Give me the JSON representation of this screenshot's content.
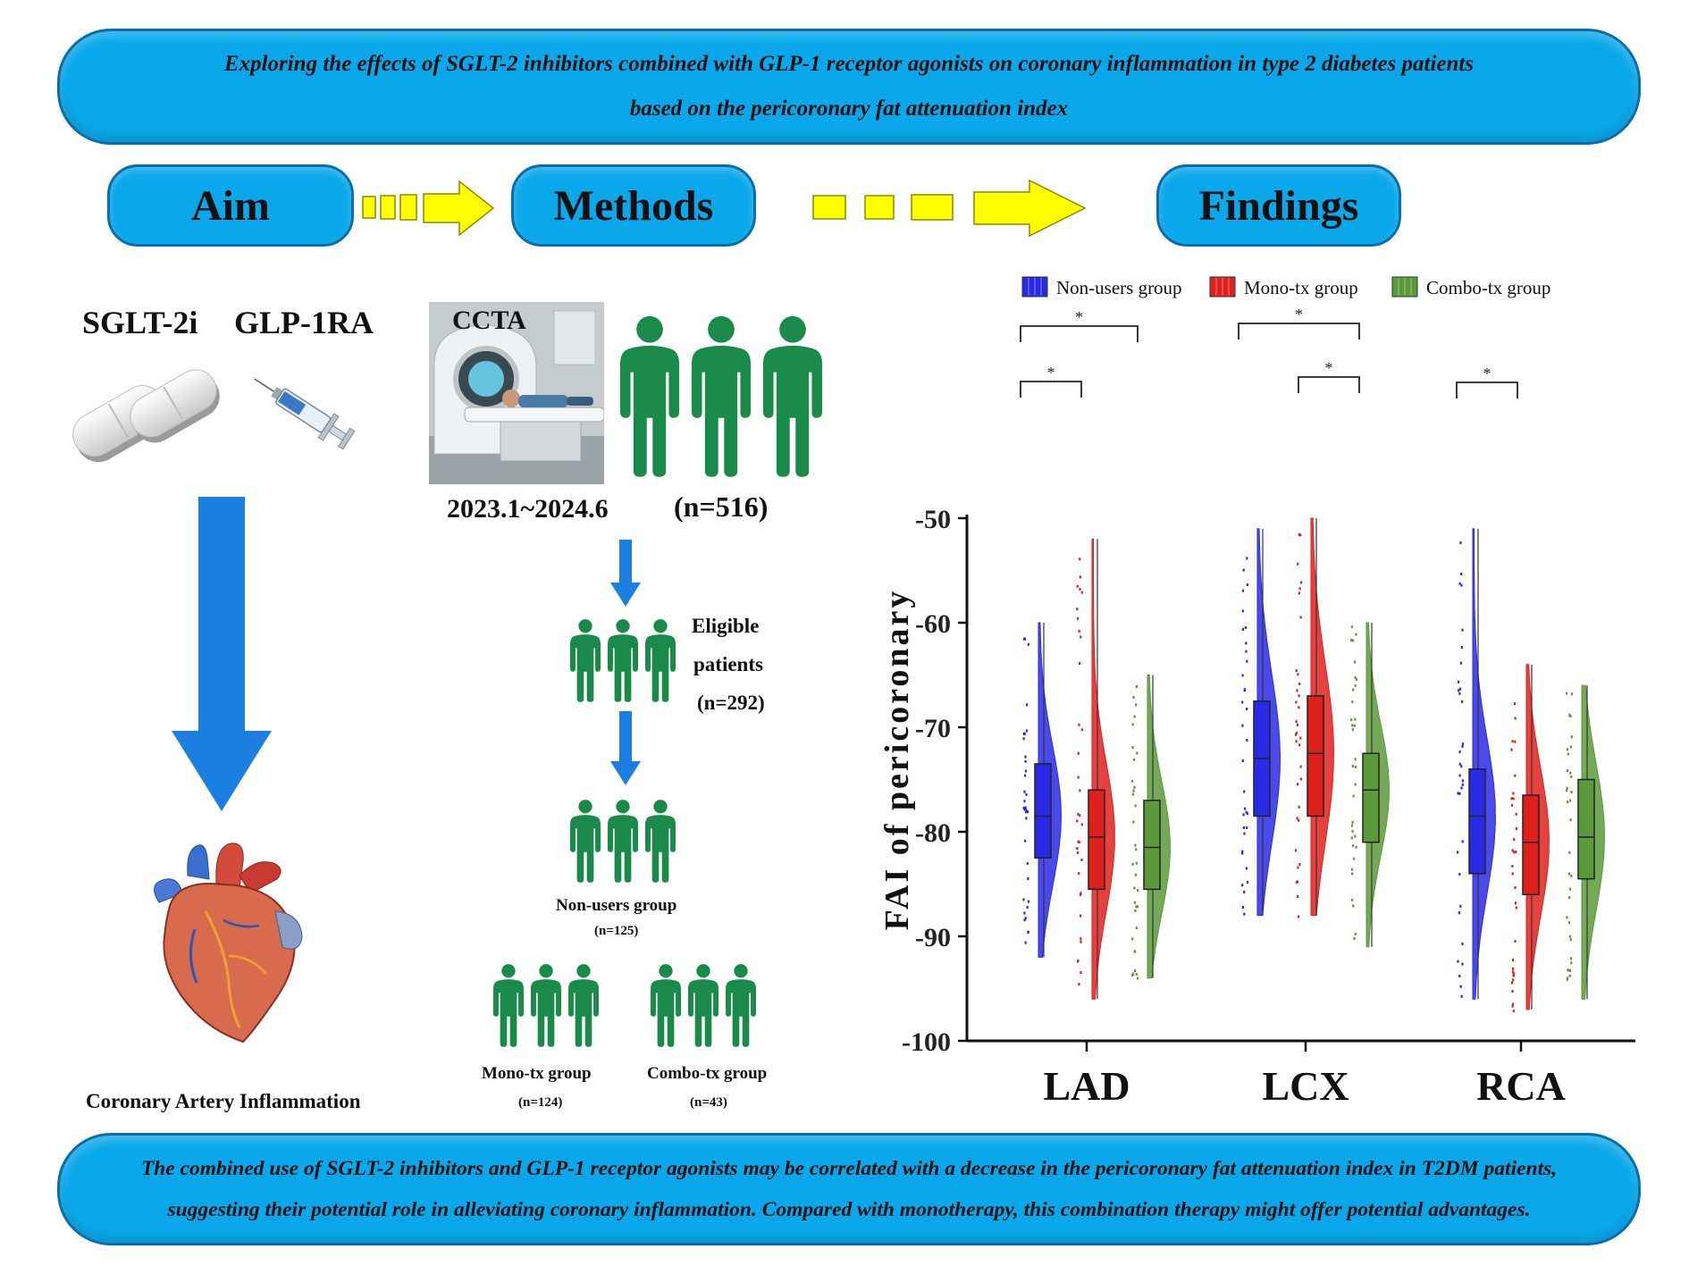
{
  "title_banner": {
    "line1": "Exploring the effects of SGLT-2 inhibitors combined with GLP-1 receptor agonists on coronary inflammation in type 2 diabetes patients",
    "line2": "based on the pericoronary fat attenuation index"
  },
  "sections": {
    "aim": "Aim",
    "methods": "Methods",
    "findings": "Findings"
  },
  "aim": {
    "drug1": "SGLT-2i",
    "drug2": "GLP-1RA",
    "outcome": "Coronary Artery Inflammation"
  },
  "methods": {
    "scan_label": "CCTA",
    "period": "2023.1~2024.6",
    "total": "(n=516)",
    "eligible_line1": "Eligible",
    "eligible_line2": "patients",
    "eligible_n": "(n=292)",
    "groups": [
      {
        "name": "Non-users group",
        "n": "(n=125)"
      },
      {
        "name": "Mono-tx group",
        "n": "(n=124)"
      },
      {
        "name": "Combo-tx group",
        "n": "(n=43)"
      }
    ]
  },
  "chart_data": {
    "type": "violin-box",
    "ylabel": "FAI of pericoronary",
    "ylim": [
      -100,
      -50
    ],
    "yticks": [
      "-50",
      "-60",
      "-70",
      "-80",
      "-90",
      "-100"
    ],
    "categories": [
      "LAD",
      "LCX",
      "RCA"
    ],
    "legend": [
      "Non-users group",
      "Mono-tx group",
      "Combo-tx group"
    ],
    "colors": [
      "#2a2ae6",
      "#e0201c",
      "#5a9a3a"
    ],
    "series": [
      {
        "name": "Non-users group",
        "stats": [
          {
            "min": -92,
            "q1": -82.5,
            "median": -78.5,
            "q3": -73.5,
            "max": -60
          },
          {
            "min": -88,
            "q1": -78.5,
            "median": -73,
            "q3": -67.5,
            "max": -51
          },
          {
            "min": -96,
            "q1": -84,
            "median": -78.5,
            "q3": -74,
            "max": -51
          }
        ]
      },
      {
        "name": "Mono-tx group",
        "stats": [
          {
            "min": -96,
            "q1": -85.5,
            "median": -80.5,
            "q3": -76,
            "max": -52
          },
          {
            "min": -88,
            "q1": -78.5,
            "median": -72.5,
            "q3": -67,
            "max": -50
          },
          {
            "min": -97,
            "q1": -86,
            "median": -81,
            "q3": -76.5,
            "max": -64
          }
        ]
      },
      {
        "name": "Combo-tx group",
        "stats": [
          {
            "min": -94,
            "q1": -85.5,
            "median": -81.5,
            "q3": -77,
            "max": -65
          },
          {
            "min": -91,
            "q1": -81,
            "median": -76,
            "q3": -72.5,
            "max": -60
          },
          {
            "min": -96,
            "q1": -84.5,
            "median": -80.5,
            "q3": -75,
            "max": -66
          }
        ]
      }
    ],
    "significance": [
      {
        "category": "LAD",
        "label": "*"
      },
      {
        "category": "LAD",
        "label": "*"
      },
      {
        "category": "LCX",
        "label": "*"
      },
      {
        "category": "LCX",
        "label": "*"
      },
      {
        "category": "RCA",
        "label": "*"
      }
    ]
  },
  "conclusion_banner": {
    "line1": "The combined use of SGLT-2 inhibitors and GLP-1 receptor agonists may be correlated with a decrease in the pericoronary fat attenuation index in T2DM patients,",
    "line2": "suggesting their potential role in alleviating coronary inflammation. Compared with monotherapy, this combination therapy might offer potential advantages."
  }
}
